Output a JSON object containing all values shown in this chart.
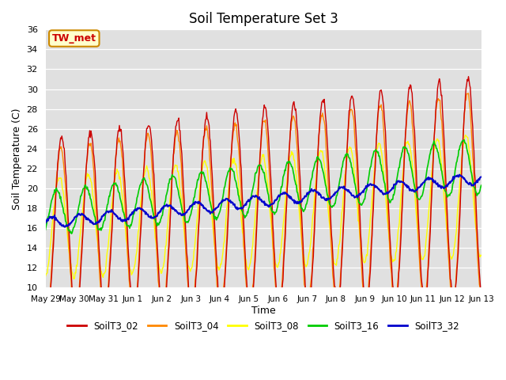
{
  "title": "Soil Temperature Set 3",
  "xlabel": "Time",
  "ylabel": "Soil Temperature (C)",
  "ylim": [
    10,
    36
  ],
  "yticks": [
    10,
    12,
    14,
    16,
    18,
    20,
    22,
    24,
    26,
    28,
    30,
    32,
    34,
    36
  ],
  "annotation": "TW_met",
  "series_colors": {
    "SoilT3_02": "#cc0000",
    "SoilT3_04": "#ff8800",
    "SoilT3_08": "#ffff00",
    "SoilT3_16": "#00cc00",
    "SoilT3_32": "#0000cc"
  },
  "legend_colors": [
    "#cc0000",
    "#ff8800",
    "#ffff00",
    "#00cc00",
    "#0000cc"
  ],
  "legend_labels": [
    "SoilT3_02",
    "SoilT3_04",
    "SoilT3_08",
    "SoilT3_16",
    "SoilT3_32"
  ],
  "xtick_positions": [
    0,
    1,
    2,
    3,
    4,
    5,
    6,
    7,
    8,
    9,
    10,
    11,
    12,
    13,
    14,
    15
  ],
  "xtick_labels": [
    "May 29",
    "May 30",
    "May 31",
    "Jun 1",
    "Jun 2",
    "Jun 3",
    "Jun 4",
    "Jun 5",
    "Jun 6",
    "Jun 7",
    "Jun 8",
    "Jun 9",
    "Jun 10",
    "Jun 11",
    "Jun 12",
    "Jun 13"
  ],
  "n_days": 15,
  "bg_color": "#e0e0e0",
  "plot_bg": "#dcdcdc"
}
